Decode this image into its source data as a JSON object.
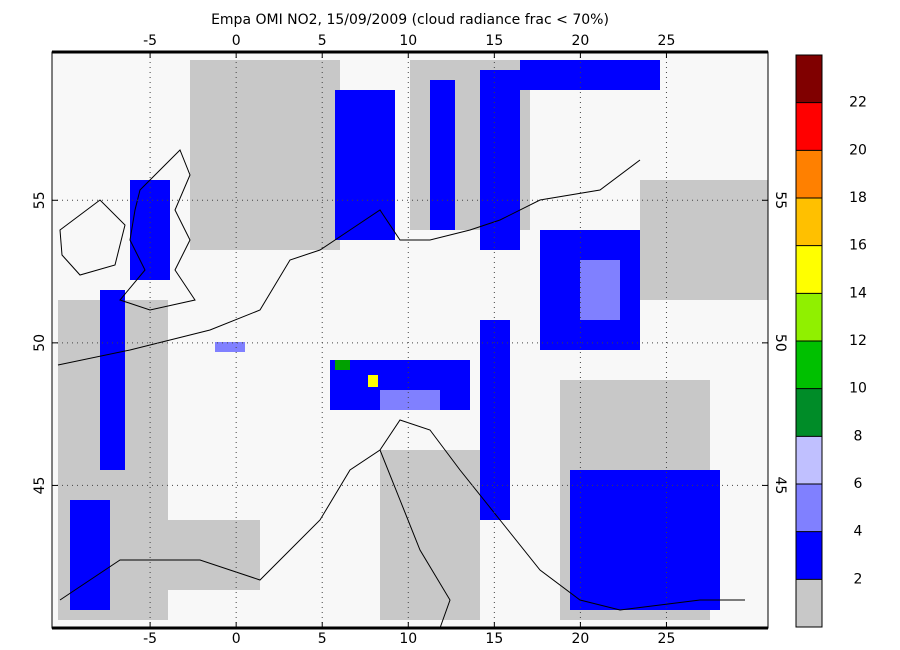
{
  "map": {
    "title": "Empa OMI NO2, 15/09/2009 (cloud radiance frac < 70%)",
    "lonlim": [
      -10.7,
      30.9
    ],
    "latlim": [
      40,
      60.2
    ],
    "lonticks": [
      -5,
      0,
      5,
      10,
      15,
      20,
      25
    ],
    "latticks": [
      45,
      50,
      55
    ],
    "grid": true,
    "colorbar": {
      "colors": [
        "#c8c8c8",
        "#0000ff",
        "#8080ff",
        "#c0c0ff",
        "#008c28",
        "#00c000",
        "#90f000",
        "#ffff00",
        "#ffc000",
        "#ff8000",
        "#ff0000",
        "#800000"
      ],
      "ticks": [
        2,
        4,
        6,
        8,
        10,
        12,
        14,
        16,
        18,
        20,
        22
      ]
    }
  }
}
